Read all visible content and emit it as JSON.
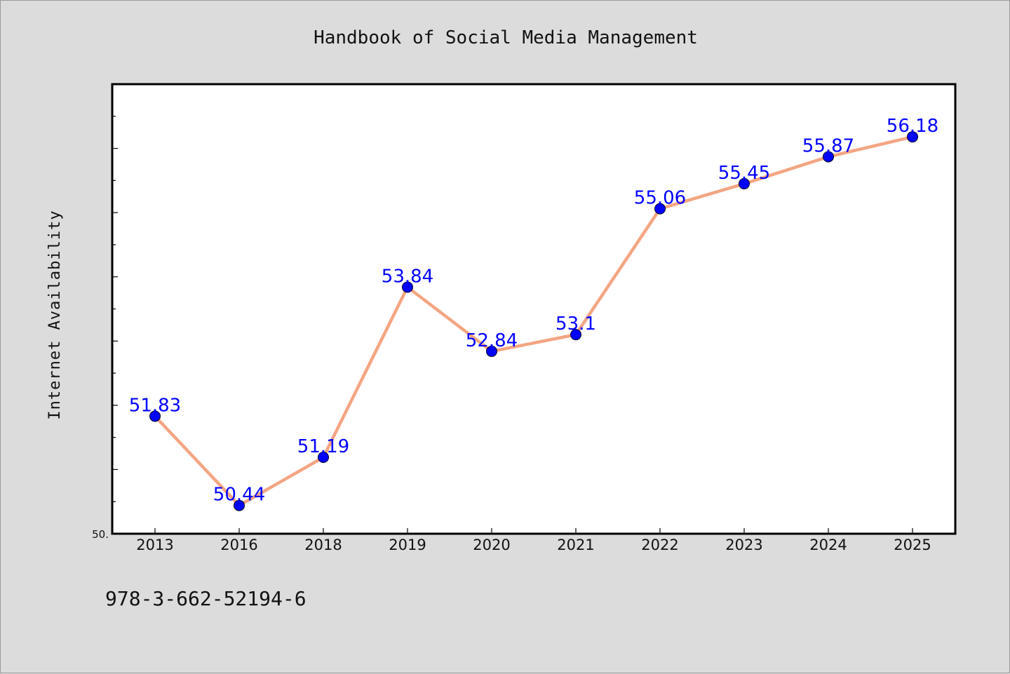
{
  "chart_data": {
    "type": "line",
    "title": "Handbook of Social Media Management",
    "ylabel": "Internet Availability",
    "xlabel": "",
    "categories": [
      "2013",
      "2016",
      "2018",
      "2019",
      "2020",
      "2021",
      "2022",
      "2023",
      "2024",
      "2025"
    ],
    "series": [
      {
        "values": [
          51.83,
          50.44,
          51.19,
          53.84,
          52.84,
          53.1,
          55.06,
          55.45,
          55.87,
          56.18
        ]
      }
    ],
    "data_labels": [
      "51.83",
      "50.44",
      "51.19",
      "53.84",
      "52.84",
      "53.1",
      "55.06",
      "55.45",
      "55.87",
      "56.18"
    ],
    "y_tick_label": "50.",
    "ylim": [
      50.0,
      57.0
    ],
    "grid": false,
    "line_color": "#f4a582",
    "marker_color": "#0000ff",
    "label_color": "#0000ff"
  },
  "footer": {
    "isbn": "978-3-662-52194-6"
  }
}
